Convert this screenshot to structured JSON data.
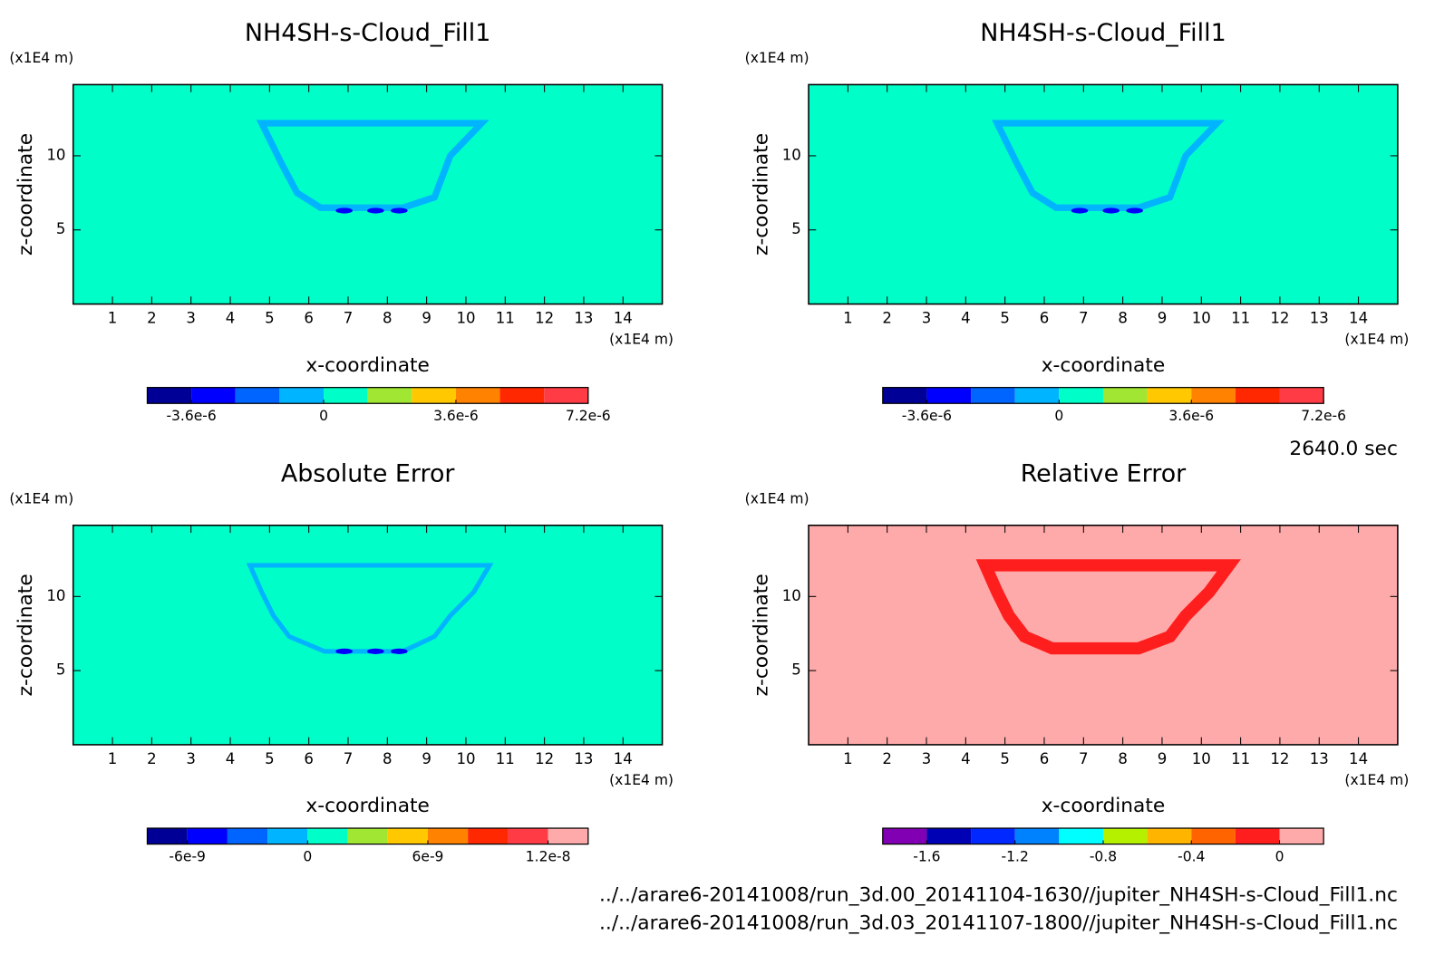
{
  "chart_data": [
    {
      "type": "contour",
      "title": "NH4SH-s-Cloud_Fill1",
      "xlabel": "x-coordinate",
      "ylabel": "z-coordinate",
      "x_unit": "(x1E4 m)",
      "y_unit": "(x1E4 m)",
      "xlim": [
        0,
        15
      ],
      "xticks": [
        1,
        2,
        3,
        4,
        5,
        6,
        7,
        8,
        9,
        10,
        11,
        12,
        13,
        14
      ],
      "ylim": [
        0,
        14.8
      ],
      "yticks": [
        5,
        10
      ],
      "field_color": "#00ffc8",
      "outline_color": "#00b4ff",
      "colorbar": {
        "colors": [
          "#000096",
          "#0000ff",
          "#0064ff",
          "#00b4ff",
          "#00ffc8",
          "#a0e632",
          "#ffc800",
          "#ff8200",
          "#ff2800",
          "#ff3c46"
        ],
        "lim": [
          -4.8e-06,
          7.2e-06
        ],
        "ticks": [
          {
            "value": -3.6e-06,
            "label": "-3.6e-6"
          },
          0,
          {
            "value": 3.6e-06,
            "label": "3.6e-6"
          },
          {
            "value": 7.2e-06,
            "label": "7.2e-6"
          }
        ]
      }
    },
    {
      "type": "contour",
      "title": "NH4SH-s-Cloud_Fill1",
      "xlabel": "x-coordinate",
      "ylabel": "z-coordinate",
      "x_unit": "(x1E4 m)",
      "y_unit": "(x1E4 m)",
      "xlim": [
        0,
        15
      ],
      "xticks": [
        1,
        2,
        3,
        4,
        5,
        6,
        7,
        8,
        9,
        10,
        11,
        12,
        13,
        14
      ],
      "ylim": [
        0,
        14.8
      ],
      "yticks": [
        5,
        10
      ],
      "field_color": "#00ffc8",
      "outline_color": "#00b4ff",
      "colorbar": {
        "colors": [
          "#000096",
          "#0000ff",
          "#0064ff",
          "#00b4ff",
          "#00ffc8",
          "#a0e632",
          "#ffc800",
          "#ff8200",
          "#ff2800",
          "#ff3c46"
        ],
        "lim": [
          -4.8e-06,
          7.2e-06
        ],
        "ticks": [
          {
            "value": -3.6e-06,
            "label": "-3.6e-6"
          },
          0,
          {
            "value": 3.6e-06,
            "label": "3.6e-6"
          },
          {
            "value": 7.2e-06,
            "label": "7.2e-6"
          }
        ]
      }
    },
    {
      "type": "contour",
      "title": "Absolute Error",
      "xlabel": "x-coordinate",
      "ylabel": "z-coordinate",
      "x_unit": "(x1E4 m)",
      "y_unit": "(x1E4 m)",
      "xlim": [
        0,
        15
      ],
      "xticks": [
        1,
        2,
        3,
        4,
        5,
        6,
        7,
        8,
        9,
        10,
        11,
        12,
        13,
        14
      ],
      "ylim": [
        0,
        14.8
      ],
      "yticks": [
        5,
        10
      ],
      "field_color": "#00ffc8",
      "outline_color": "#00b4ff",
      "colorbar": {
        "colors": [
          "#000096",
          "#0000ff",
          "#0064ff",
          "#00b4ff",
          "#00ffc8",
          "#a0e632",
          "#ffc800",
          "#ff8200",
          "#ff2800",
          "#ff3c46",
          "#ffaaaa"
        ],
        "lim": [
          -8e-09,
          1.4e-08
        ],
        "ticks": [
          {
            "value": -6e-09,
            "label": "-6e-9"
          },
          0,
          {
            "value": 6e-09,
            "label": "6e-9"
          },
          {
            "value": 1.2e-08,
            "label": "1.2e-8"
          }
        ]
      }
    },
    {
      "type": "contour",
      "title": "Relative Error",
      "xlabel": "x-coordinate",
      "ylabel": "z-coordinate",
      "x_unit": "(x1E4 m)",
      "y_unit": "(x1E4 m)",
      "xlim": [
        0,
        15
      ],
      "xticks": [
        1,
        2,
        3,
        4,
        5,
        6,
        7,
        8,
        9,
        10,
        11,
        12,
        13,
        14
      ],
      "ylim": [
        0,
        14.8
      ],
      "yticks": [
        5,
        10
      ],
      "field_color": "#ffaaaa",
      "outline_color": "#ff1e1e",
      "colorbar": {
        "colors": [
          "#8200b4",
          "#0000b4",
          "#0028ff",
          "#0082ff",
          "#00ffff",
          "#b4f000",
          "#ffb400",
          "#ff6400",
          "#ff1e1e",
          "#ffaaaa"
        ],
        "lim": [
          -1.8,
          0.2
        ],
        "ticks": [
          -1.6,
          -1.2,
          -0.8,
          -0.4,
          0
        ]
      }
    }
  ],
  "time_label": "2640.0 sec",
  "files": [
    "../../arare6-20141008/run_3d.00_20141104-1630//jupiter_NH4SH-s-Cloud_Fill1.nc",
    "../../arare6-20141008/run_3d.03_20141107-1800//jupiter_NH4SH-s-Cloud_Fill1.nc"
  ]
}
